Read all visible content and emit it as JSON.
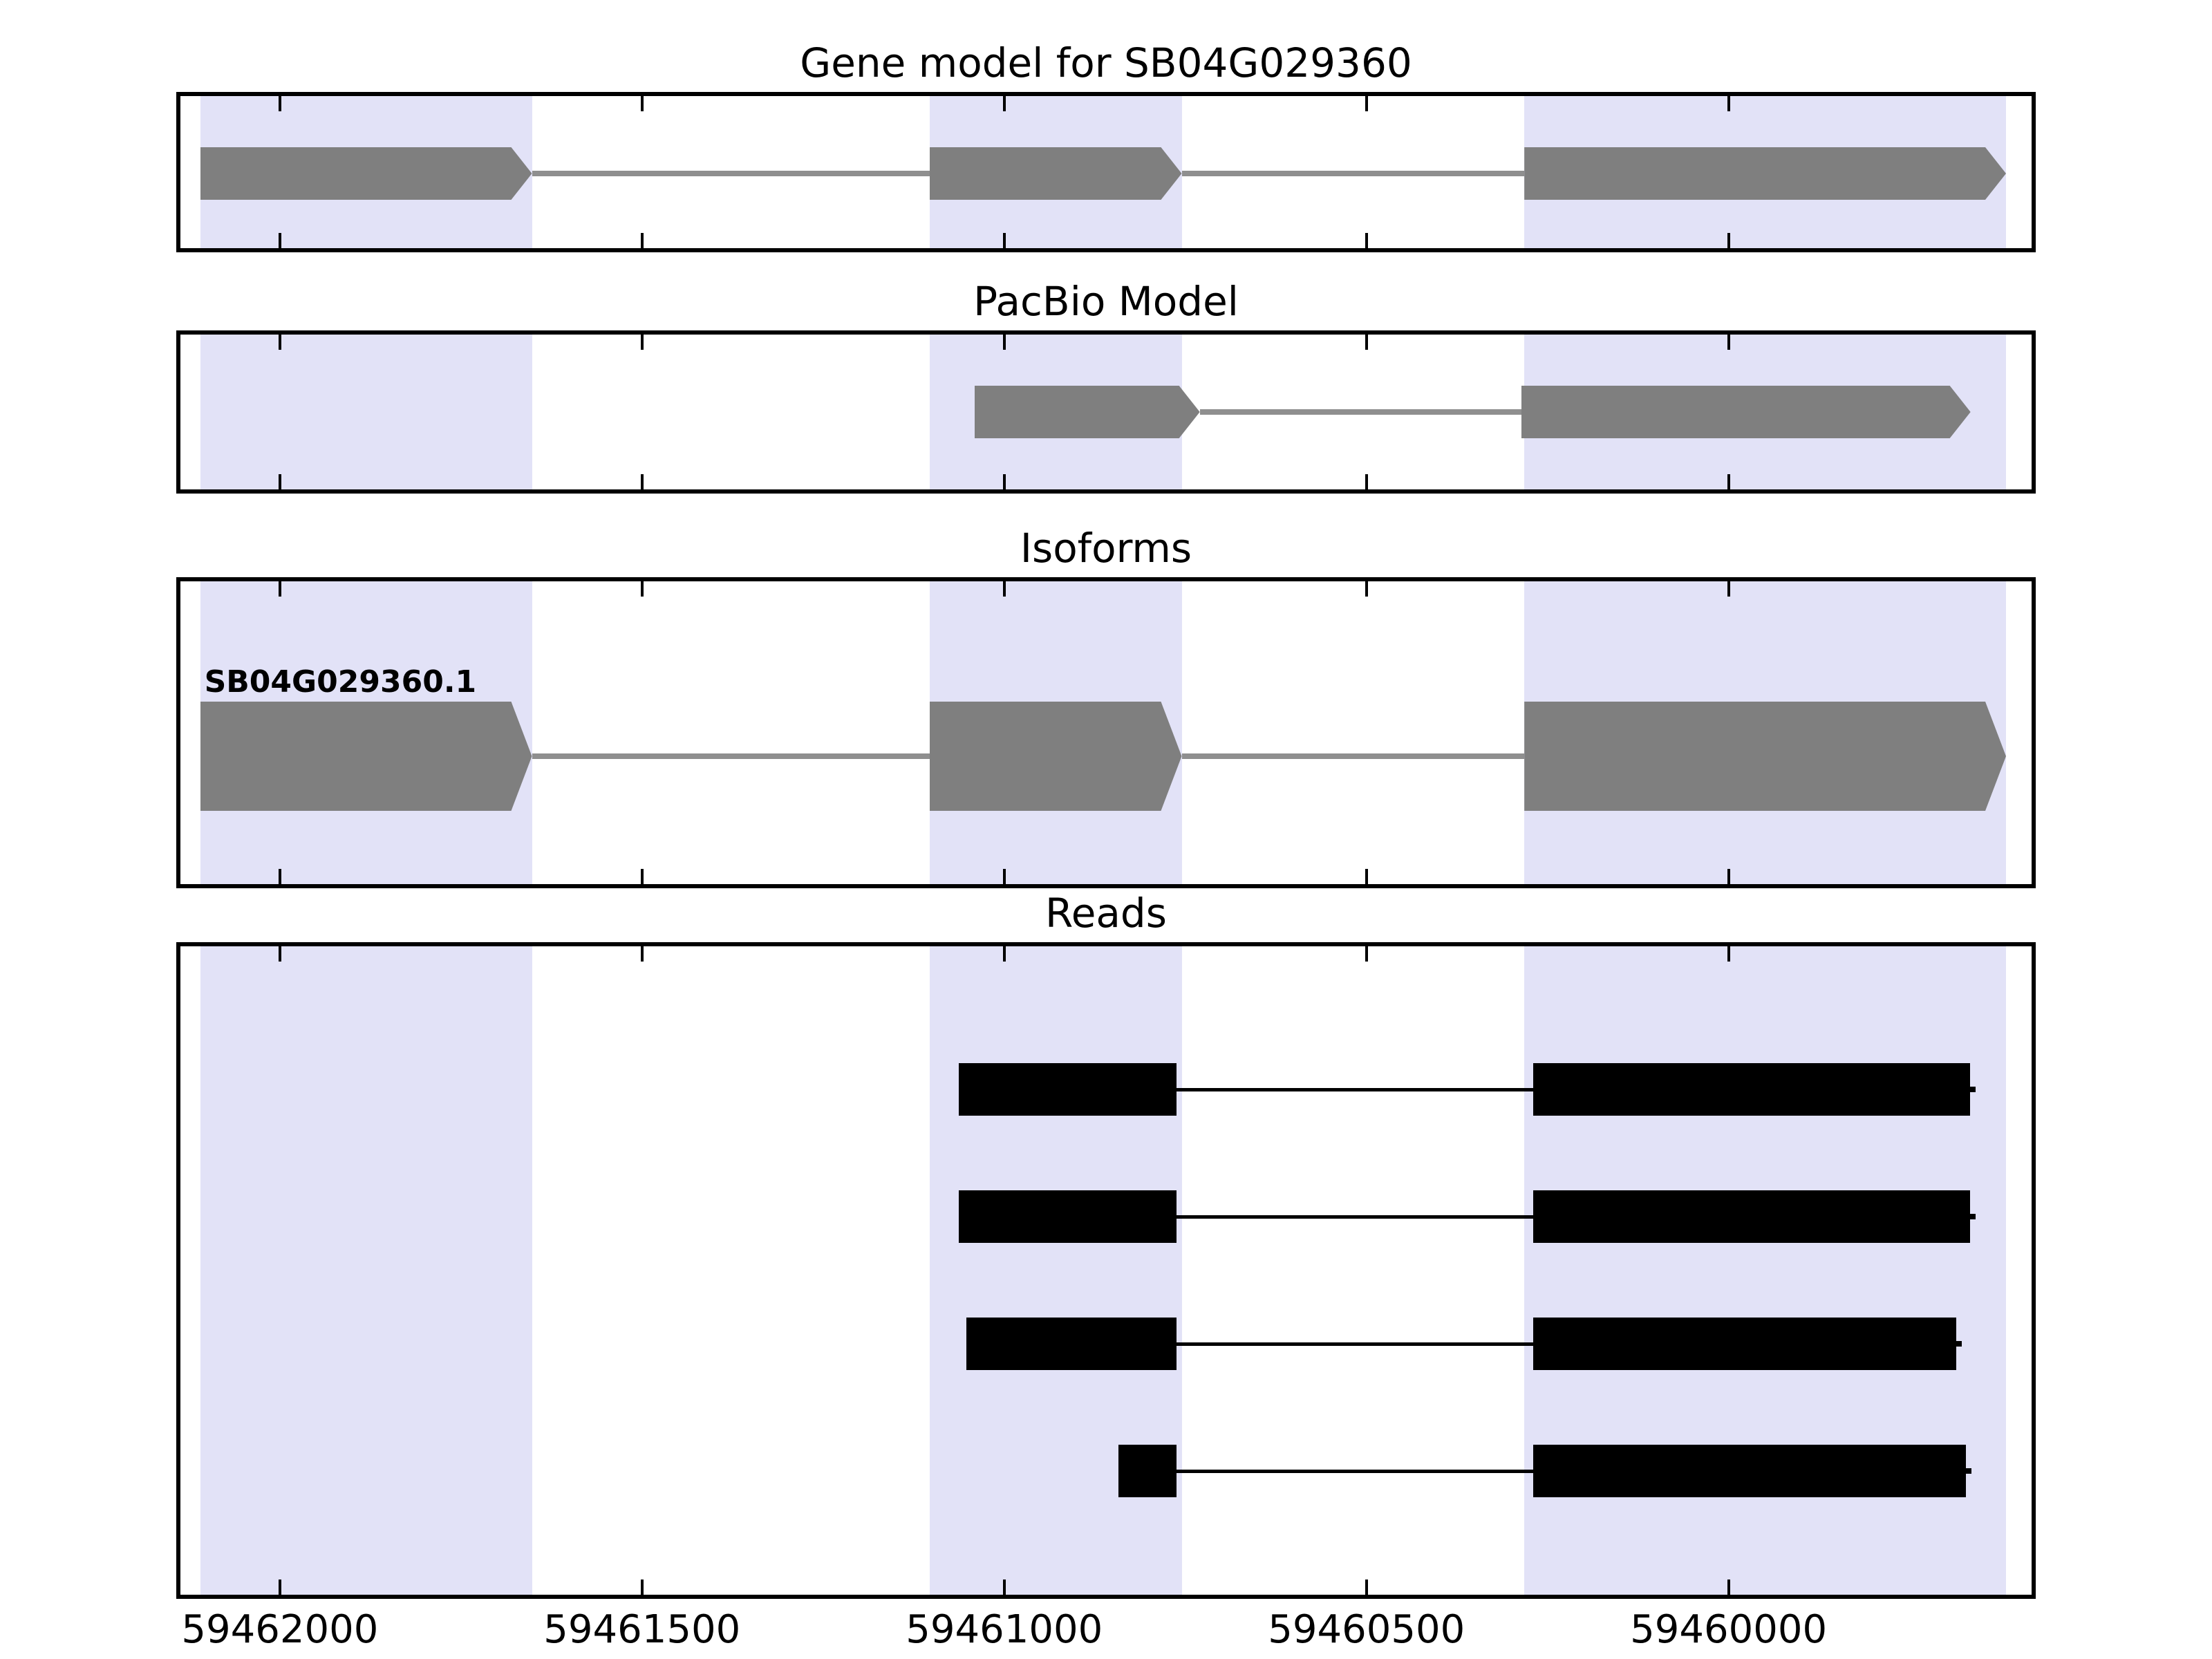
{
  "colors": {
    "background": "#ffffff",
    "highlight_band": "#e2e2f7",
    "exon_fill": "#7f7f7f",
    "intron_line": "#8f8f8f",
    "read_fill": "#000000",
    "axis": "#000000",
    "text": "#000000"
  },
  "chart_data": {
    "type": "gene-structure-tracks",
    "x_axis": {
      "unit": "genomic position (bp)",
      "inverted": true,
      "xlim_left": 59462143,
      "xlim_right": 59459576,
      "tick_positions": [
        59462000,
        59461500,
        59461000,
        59460500,
        59460000
      ],
      "tick_labels": [
        "59462000",
        "59461500",
        "59461000",
        "59460500",
        "59460000"
      ]
    },
    "highlight_bands": [
      {
        "start": 59461652,
        "end": 59462110
      },
      {
        "start": 59460755,
        "end": 59461103
      },
      {
        "start": 59459617,
        "end": 59460282
      }
    ],
    "panels": [
      {
        "id": "gene-model",
        "title": "Gene model for SB04G029360",
        "type": "model",
        "strand_arrow": "right",
        "exons": [
          {
            "start": 59461652,
            "end": 59462110
          },
          {
            "start": 59460755,
            "end": 59461103
          },
          {
            "start": 59459617,
            "end": 59460282
          }
        ]
      },
      {
        "id": "pacbio-model",
        "title": "PacBio Model",
        "type": "model",
        "strand_arrow": "right",
        "exons": [
          {
            "start": 59460730,
            "end": 59461041
          },
          {
            "start": 59459666,
            "end": 59460286
          }
        ]
      },
      {
        "id": "isoforms",
        "title": "Isoforms",
        "type": "model",
        "strand_arrow": "right",
        "isoform_label": "SB04G029360.1",
        "exons": [
          {
            "start": 59461652,
            "end": 59462110
          },
          {
            "start": 59460755,
            "end": 59461103
          },
          {
            "start": 59459617,
            "end": 59460282
          }
        ]
      },
      {
        "id": "reads",
        "title": "Reads",
        "type": "reads",
        "reads": [
          {
            "blocks": [
              {
                "start": 59460762,
                "end": 59461063
              },
              {
                "start": 59459667,
                "end": 59460270
              }
            ]
          },
          {
            "blocks": [
              {
                "start": 59460762,
                "end": 59461063
              },
              {
                "start": 59459667,
                "end": 59460270
              }
            ]
          },
          {
            "blocks": [
              {
                "start": 59460762,
                "end": 59461052
              },
              {
                "start": 59459686,
                "end": 59460270
              }
            ]
          },
          {
            "blocks": [
              {
                "start": 59460762,
                "end": 59460842
              },
              {
                "start": 59459672,
                "end": 59460270
              }
            ]
          }
        ]
      }
    ]
  }
}
